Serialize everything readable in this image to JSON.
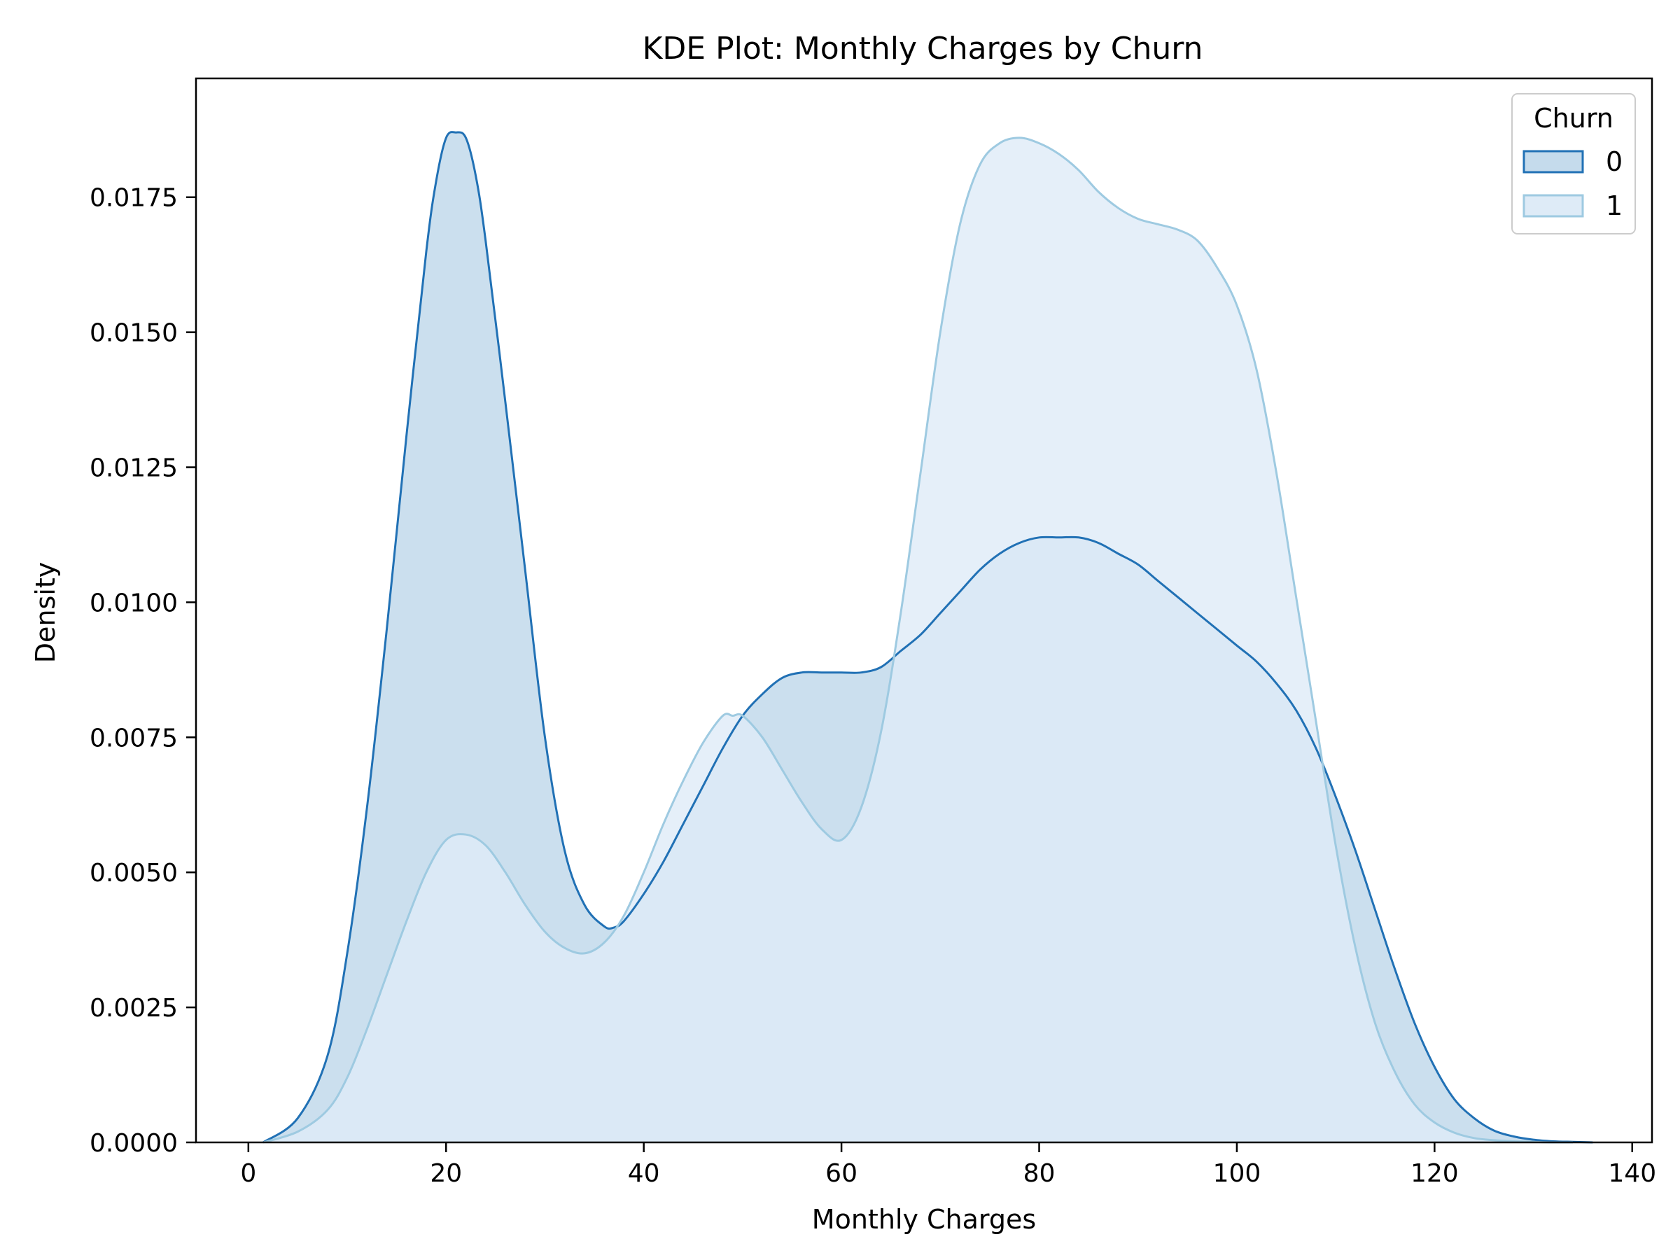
{
  "chart_data": {
    "type": "area",
    "title": "KDE Plot: Monthly Charges by Churn",
    "xlabel": "Monthly Charges",
    "ylabel": "Density",
    "xlim": [
      -5.3,
      142
    ],
    "ylim": [
      0,
      0.0197
    ],
    "x_ticks": [
      "0",
      "20",
      "40",
      "60",
      "80",
      "100",
      "120",
      "140"
    ],
    "y_ticks": [
      "0.0000",
      "0.0025",
      "0.0050",
      "0.0075",
      "0.0100",
      "0.0125",
      "0.0150",
      "0.0175"
    ],
    "grid": false,
    "legend": {
      "title": "Churn",
      "placement": "top-right",
      "entries": [
        "0",
        "1"
      ]
    },
    "series": [
      {
        "name": "0",
        "color": "#2171b5",
        "fill": "#c5dbec",
        "x": [
          1.5,
          5,
          8,
          10,
          12,
          14,
          16,
          18,
          19,
          20,
          21,
          22,
          23,
          24,
          26,
          28,
          30,
          32,
          34,
          36,
          37,
          38,
          40,
          42,
          44,
          46,
          48,
          50,
          52,
          54,
          56,
          58,
          60,
          62,
          64,
          66,
          68,
          70,
          72,
          74,
          76,
          78,
          80,
          82,
          84,
          86,
          88,
          90,
          92,
          94,
          96,
          98,
          100,
          102,
          104,
          106,
          108,
          110,
          112,
          114,
          116,
          118,
          120,
          122,
          124,
          126,
          128,
          130,
          132,
          134,
          136
        ],
        "y": [
          0.0,
          0.00045,
          0.0016,
          0.0035,
          0.0062,
          0.0095,
          0.0131,
          0.0165,
          0.0178,
          0.0186,
          0.0187,
          0.0186,
          0.0179,
          0.0167,
          0.0137,
          0.0106,
          0.0075,
          0.0054,
          0.0044,
          0.004,
          0.00398,
          0.0041,
          0.0046,
          0.0052,
          0.0059,
          0.0066,
          0.0073,
          0.0079,
          0.0083,
          0.0086,
          0.0087,
          0.0087,
          0.0087,
          0.0087,
          0.0088,
          0.0091,
          0.0094,
          0.0098,
          0.0102,
          0.0106,
          0.0109,
          0.0111,
          0.0112,
          0.0112,
          0.0112,
          0.0111,
          0.0109,
          0.0107,
          0.0104,
          0.0101,
          0.0098,
          0.0095,
          0.0092,
          0.0089,
          0.0085,
          0.008,
          0.0073,
          0.0064,
          0.0054,
          0.0043,
          0.0032,
          0.0022,
          0.0014,
          0.0008,
          0.00045,
          0.00022,
          0.00011,
          5e-05,
          2e-05,
          1e-05,
          0.0
        ]
      },
      {
        "name": "1",
        "color": "#9ecae1",
        "fill": "#deebf7",
        "x": [
          1.5,
          5,
          8,
          10,
          12,
          14,
          16,
          18,
          20,
          22,
          24,
          26,
          28,
          30,
          32,
          34,
          36,
          38,
          40,
          42,
          44,
          46,
          48,
          49,
          50,
          52,
          54,
          56,
          58,
          60,
          62,
          64,
          66,
          68,
          70,
          72,
          74,
          76,
          78,
          80,
          82,
          84,
          86,
          88,
          90,
          92,
          94,
          96,
          98,
          100,
          102,
          104,
          106,
          108,
          110,
          112,
          114,
          116,
          118,
          120,
          122,
          124,
          126,
          128,
          130,
          132,
          134
        ],
        "y": [
          0.0,
          0.0002,
          0.0006,
          0.0012,
          0.0021,
          0.0031,
          0.0041,
          0.005,
          0.0056,
          0.0057,
          0.0055,
          0.005,
          0.0044,
          0.0039,
          0.0036,
          0.0035,
          0.0037,
          0.0042,
          0.005,
          0.0059,
          0.0067,
          0.0074,
          0.0079,
          0.0079,
          0.0079,
          0.0075,
          0.0069,
          0.0063,
          0.0058,
          0.0056,
          0.0062,
          0.0076,
          0.0098,
          0.0124,
          0.015,
          0.017,
          0.0181,
          0.0185,
          0.0186,
          0.0185,
          0.0183,
          0.018,
          0.0176,
          0.0173,
          0.0171,
          0.017,
          0.0169,
          0.0167,
          0.0162,
          0.0155,
          0.0143,
          0.0124,
          0.0101,
          0.0078,
          0.0055,
          0.0036,
          0.0022,
          0.0013,
          0.0007,
          0.00037,
          0.00018,
          8e-05,
          4e-05,
          2e-05,
          1e-05,
          0.0,
          0.0
        ]
      }
    ]
  }
}
